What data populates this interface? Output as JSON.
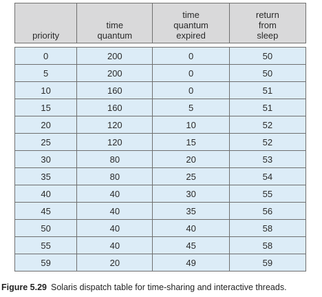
{
  "table": {
    "headers": [
      [
        "priority"
      ],
      [
        "time",
        "quantum"
      ],
      [
        "time",
        "quantum",
        "expired"
      ],
      [
        "return",
        "from",
        "sleep"
      ]
    ],
    "rows": [
      [
        "0",
        "200",
        "0",
        "50"
      ],
      [
        "5",
        "200",
        "0",
        "50"
      ],
      [
        "10",
        "160",
        "0",
        "51"
      ],
      [
        "15",
        "160",
        "5",
        "51"
      ],
      [
        "20",
        "120",
        "10",
        "52"
      ],
      [
        "25",
        "120",
        "15",
        "52"
      ],
      [
        "30",
        "80",
        "20",
        "53"
      ],
      [
        "35",
        "80",
        "25",
        "54"
      ],
      [
        "40",
        "40",
        "30",
        "55"
      ],
      [
        "45",
        "40",
        "35",
        "56"
      ],
      [
        "50",
        "40",
        "40",
        "58"
      ],
      [
        "55",
        "40",
        "45",
        "58"
      ],
      [
        "59",
        "20",
        "49",
        "59"
      ]
    ]
  },
  "caption": {
    "label": "Figure 5.29",
    "text": "Solaris dispatch table for time-sharing and interactive threads."
  },
  "colors": {
    "header_bg": "#d9d9da",
    "cell_bg": "#dcecf7",
    "border": "#6f6f6f"
  }
}
